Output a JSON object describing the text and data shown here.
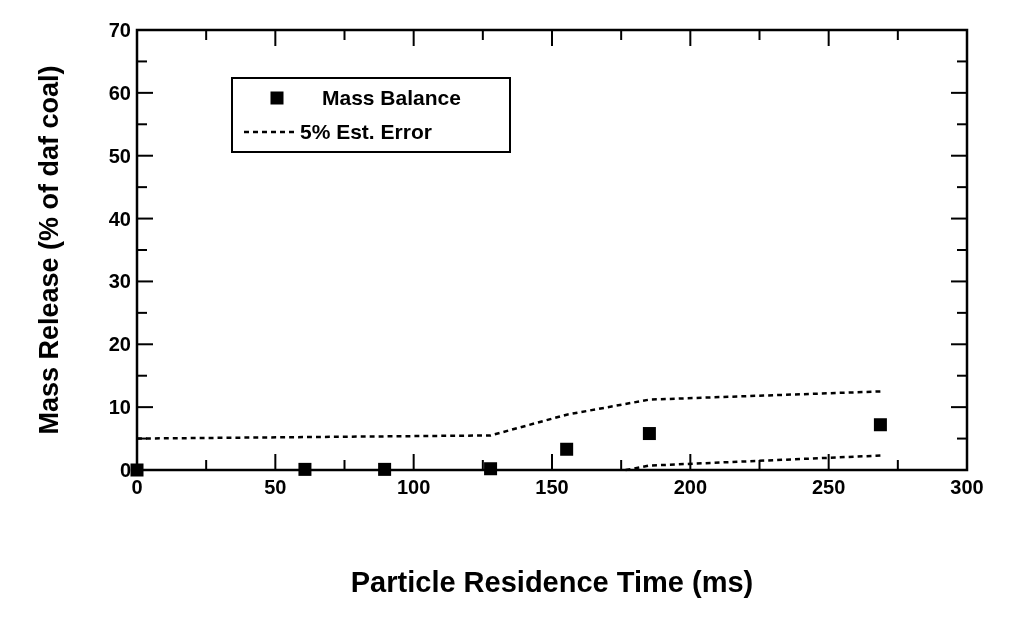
{
  "chart_data": {
    "type": "scatter",
    "xlabel": "Particle Residence Time (ms)",
    "ylabel": "Mass Release (% of daf coal)",
    "xlim": [
      0,
      300
    ],
    "ylim": [
      0,
      70
    ],
    "xticks": [
      0,
      {
        "value": 25,
        "label": null
      },
      50,
      {
        "value": 75,
        "label": null
      },
      100,
      {
        "value": 125,
        "label": null
      },
      150,
      {
        "value": 175,
        "label": null
      },
      200,
      {
        "value": 225,
        "label": null
      },
      250,
      {
        "value": 275,
        "label": null
      },
      300
    ],
    "yticks": [
      0,
      {
        "value": 5,
        "label": null
      },
      10,
      {
        "value": 15,
        "label": null
      },
      20,
      {
        "value": 25,
        "label": null
      },
      30,
      {
        "value": 35,
        "label": null
      },
      40,
      {
        "value": 45,
        "label": null
      },
      50,
      {
        "value": 55,
        "label": null
      },
      60,
      {
        "value": 65,
        "label": null
      },
      70
    ],
    "legend": "top left",
    "grid": false,
    "series": [
      {
        "name": "Mass Balance",
        "marker": "square",
        "color": "#000000",
        "x": [
          0,
          60.7,
          89.5,
          127.8,
          155.3,
          185.2,
          268.7
        ],
        "values": [
          0,
          0.1,
          0.1,
          0.2,
          3.3,
          5.8,
          7.2
        ]
      },
      {
        "name": "5% Est. Error",
        "type": "line",
        "line_style": "dotted",
        "marker": "none",
        "color": "#000000",
        "x": [
          0,
          127.8,
          155.3,
          185.2,
          268.7
        ],
        "values": [
          5.0,
          5.5,
          8.8,
          11.2,
          12.5
        ]
      },
      {
        "type": "line",
        "line_style": "dotted",
        "marker": "none",
        "color": "#000000",
        "x": [
          176.6,
          185.2,
          268.7
        ],
        "values": [
          0,
          0.7,
          2.3
        ]
      }
    ]
  }
}
